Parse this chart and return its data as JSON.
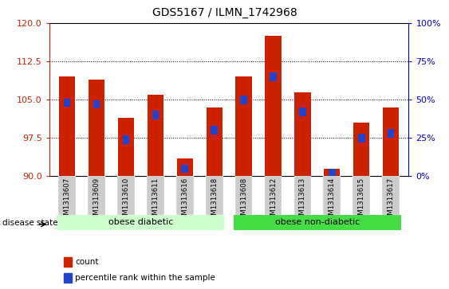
{
  "title": "GDS5167 / ILMN_1742968",
  "samples": [
    "GSM1313607",
    "GSM1313609",
    "GSM1313610",
    "GSM1313611",
    "GSM1313616",
    "GSM1313618",
    "GSM1313608",
    "GSM1313612",
    "GSM1313613",
    "GSM1313614",
    "GSM1313615",
    "GSM1313617"
  ],
  "count_values": [
    109.5,
    109.0,
    101.5,
    106.0,
    93.5,
    103.5,
    109.5,
    117.5,
    106.5,
    91.5,
    100.5,
    103.5
  ],
  "percentile_values": [
    48,
    47,
    24,
    40,
    5,
    30,
    50,
    65,
    42,
    2,
    25,
    28
  ],
  "ylim_left": [
    90,
    120
  ],
  "ylim_right": [
    0,
    100
  ],
  "yticks_left": [
    90,
    97.5,
    105,
    112.5,
    120
  ],
  "yticks_right": [
    0,
    25,
    50,
    75,
    100
  ],
  "bar_color": "#cc2200",
  "percentile_color": "#2244cc",
  "bg_plot": "#ffffff",
  "group1_label": "obese diabetic",
  "group2_label": "obese non-diabetic",
  "group1_indices": [
    0,
    1,
    2,
    3,
    4,
    5
  ],
  "group2_indices": [
    6,
    7,
    8,
    9,
    10,
    11
  ],
  "group_bg_light": "#ccffcc",
  "group_bg_dark": "#44dd44",
  "legend_count_label": "count",
  "legend_pct_label": "percentile rank within the sample",
  "disease_state_label": "disease state",
  "ylabel_left_color": "#cc2200",
  "ylabel_right_color": "#0000cc",
  "bar_width": 0.55,
  "base_value": 90
}
